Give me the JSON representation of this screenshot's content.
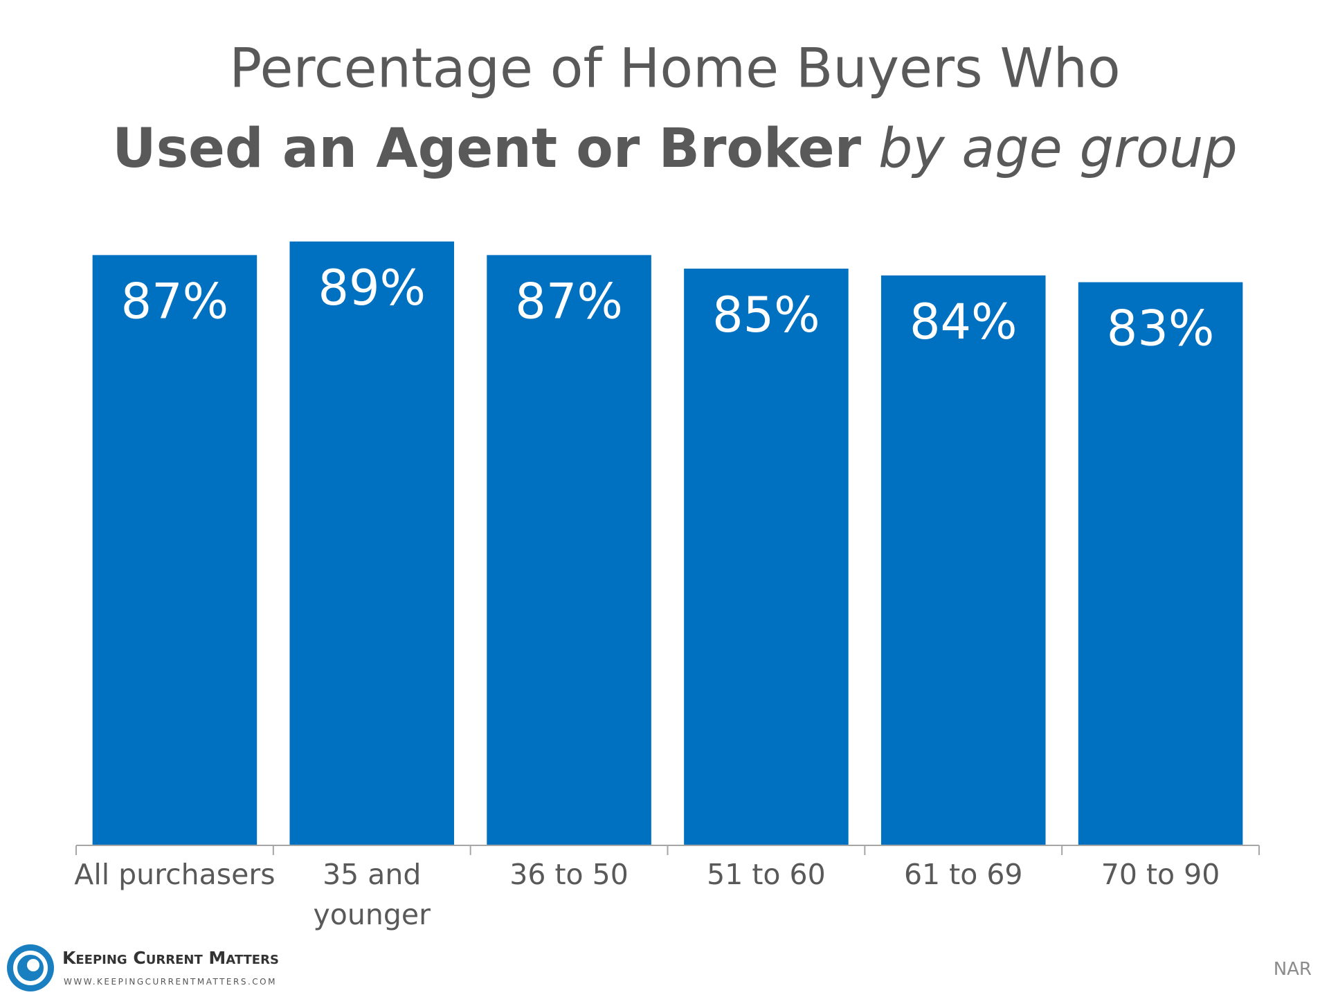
{
  "chart_data": {
    "type": "bar",
    "title": {
      "line1": "Percentage of Home Buyers Who",
      "bold": "Used an Agent or Broker",
      "italic": "by age group"
    },
    "categories": [
      "All purchasers",
      "35 and\nyounger",
      "36 to 50",
      "51 to 60",
      "61 to 69",
      "70 to 90"
    ],
    "values": [
      87,
      89,
      87,
      85,
      84,
      83
    ],
    "value_labels": [
      "87%",
      "89%",
      "87%",
      "85%",
      "84%",
      "83%"
    ],
    "color": "#0070c0",
    "ylim": [
      0,
      100
    ],
    "source": "NAR",
    "logo": {
      "name": "Keeping Current Matters",
      "url": "www.keepingcurrentmatters.com"
    }
  }
}
